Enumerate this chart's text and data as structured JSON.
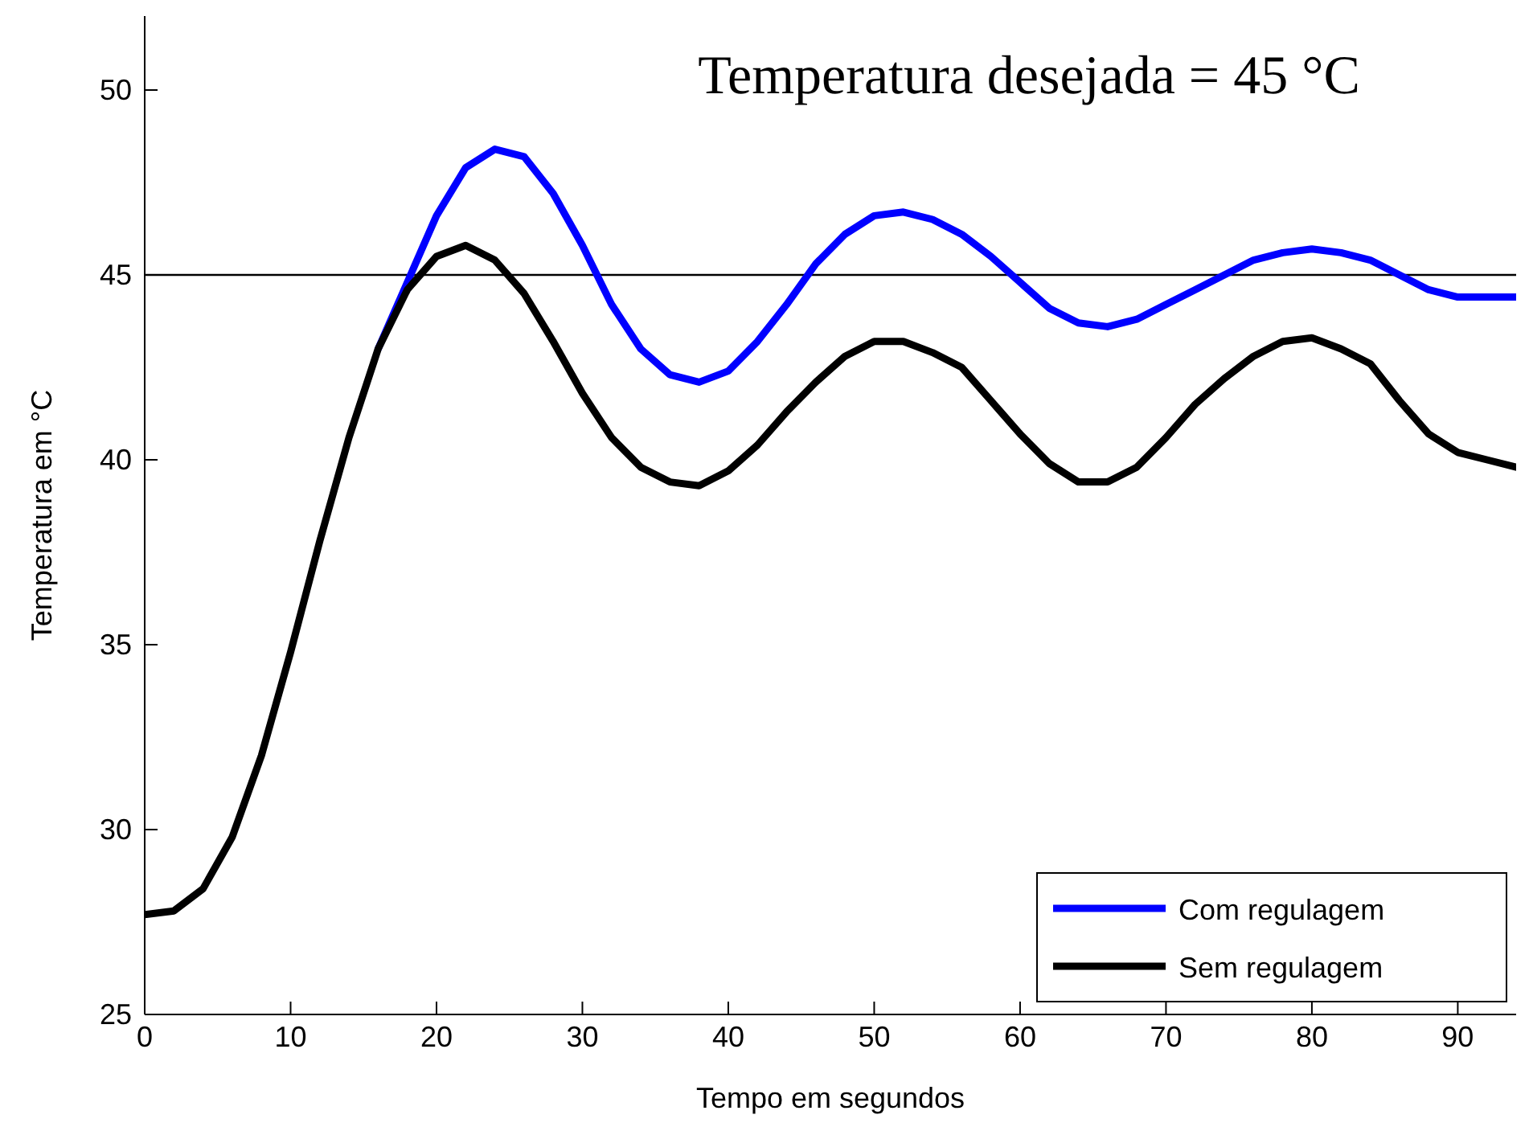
{
  "chart_data": {
    "type": "line",
    "xlabel": "Tempo em segundos",
    "ylabel": "Temperatura em °C",
    "annotations": [
      "Temperatura desejada = 45 °C"
    ],
    "x": [
      0,
      2,
      4,
      6,
      8,
      10,
      12,
      14,
      16,
      18,
      20,
      22,
      24,
      26,
      28,
      30,
      32,
      34,
      36,
      38,
      40,
      42,
      44,
      46,
      48,
      50,
      52,
      54,
      56,
      58,
      60,
      62,
      64,
      66,
      68,
      70,
      72,
      74,
      76,
      78,
      80,
      82,
      84,
      86,
      88,
      90,
      92,
      94
    ],
    "series": [
      {
        "name": "Com regulagem",
        "color": "#0000ff",
        "values": [
          null,
          null,
          null,
          null,
          null,
          null,
          null,
          null,
          43,
          44.8,
          46.6,
          47.9,
          48.4,
          48.2,
          47.2,
          45.8,
          44.2,
          43,
          42.3,
          42.1,
          42.4,
          43.2,
          44.2,
          45.3,
          46.1,
          46.6,
          46.7,
          46.5,
          46.1,
          45.5,
          44.8,
          44.1,
          43.7,
          43.6,
          43.8,
          44.2,
          44.6,
          45,
          45.4,
          45.6,
          45.7,
          45.6,
          45.4,
          45,
          44.6,
          44.4,
          44.4,
          44.4
        ]
      },
      {
        "name": "Sem regulagem",
        "color": "#000000",
        "values": [
          27.7,
          27.8,
          28.4,
          29.8,
          32,
          34.8,
          37.8,
          40.6,
          43,
          44.6,
          45.5,
          45.8,
          45.4,
          44.5,
          43.2,
          41.8,
          40.6,
          39.8,
          39.4,
          39.3,
          39.7,
          40.4,
          41.3,
          42.1,
          42.8,
          43.2,
          43.2,
          42.9,
          42.5,
          41.6,
          40.7,
          39.9,
          39.4,
          39.4,
          39.8,
          40.6,
          41.5,
          42.2,
          42.8,
          43.2,
          43.3,
          43,
          42.6,
          41.6,
          40.7,
          40.2,
          40,
          39.8
        ]
      }
    ],
    "xlim": [
      0,
      94
    ],
    "ylim": [
      25,
      52
    ],
    "xticks": [
      0,
      10,
      20,
      30,
      40,
      50,
      60,
      70,
      80,
      90
    ],
    "yticks": [
      25,
      30,
      35,
      40,
      45,
      50
    ],
    "ref_lines": [
      {
        "axis": "y",
        "value": 45,
        "color": "#000000"
      }
    ],
    "legend": "bottom right",
    "grid": false,
    "line_style": "solid",
    "marker": "none"
  }
}
